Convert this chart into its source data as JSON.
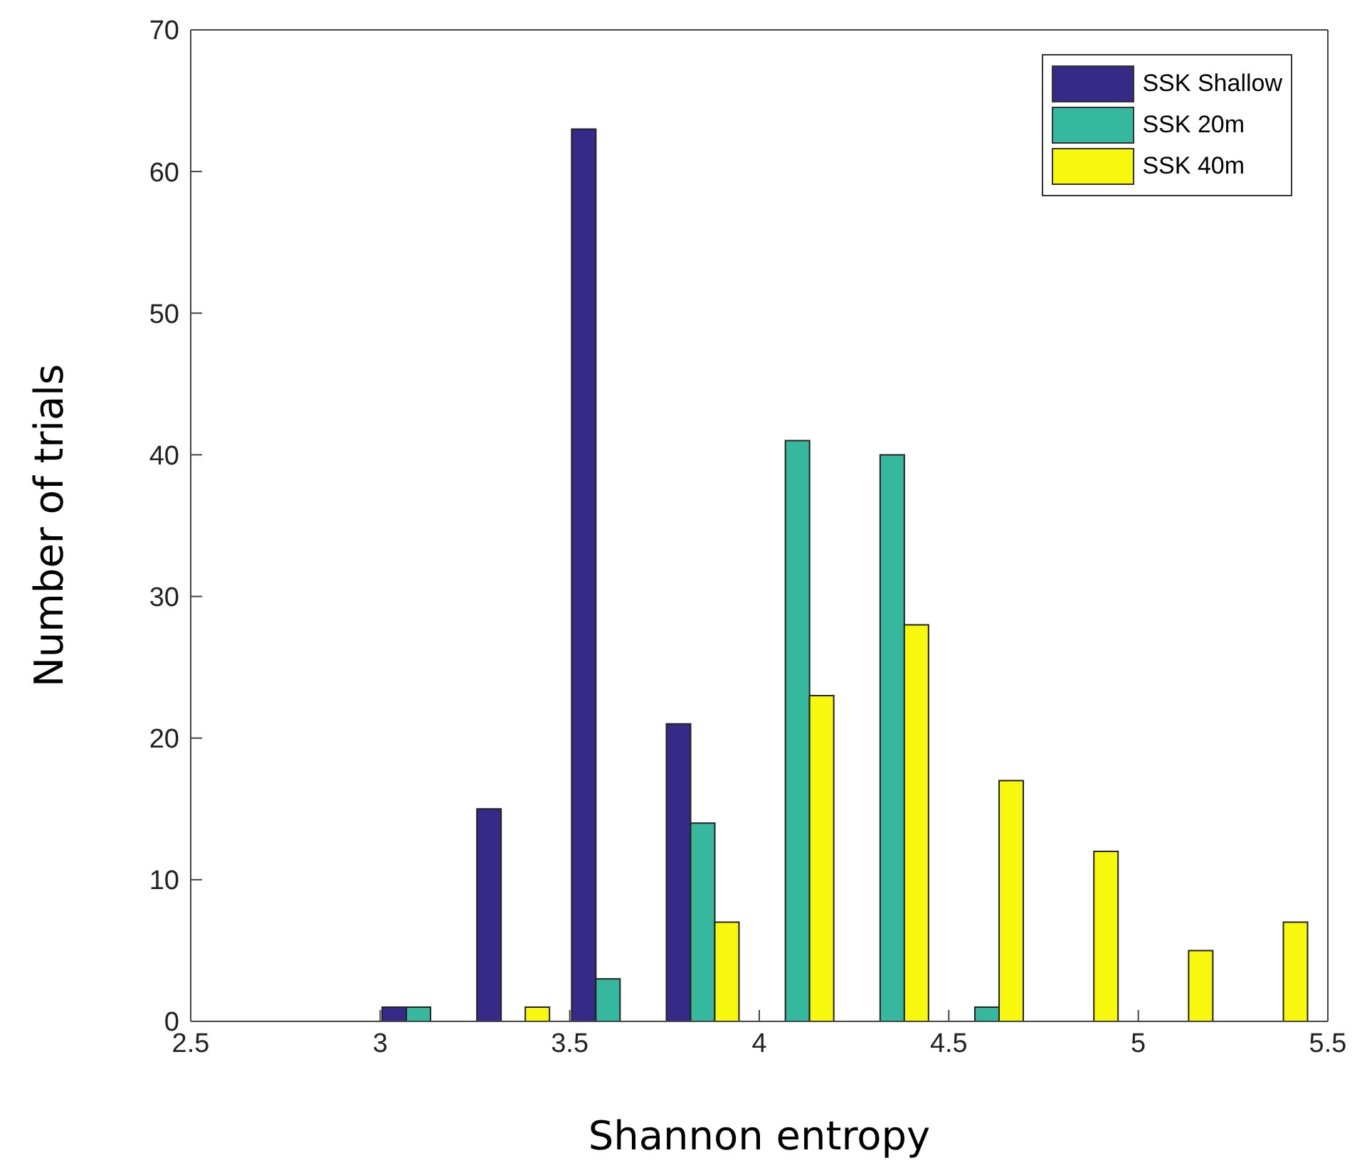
{
  "chart_data": {
    "type": "bar",
    "xlabel": "Shannon entropy",
    "ylabel": "Number of trials",
    "x": [
      3.1,
      3.35,
      3.6,
      3.85,
      4.1,
      4.35,
      4.6,
      4.85,
      5.1,
      5.35
    ],
    "series": [
      {
        "name": "SSK Shallow",
        "color": "#352a87",
        "values": [
          1,
          15,
          63,
          21,
          0,
          0,
          0,
          0,
          0,
          0
        ]
      },
      {
        "name": "SSK 20m",
        "color": "#36b89f",
        "values": [
          1,
          0,
          3,
          14,
          41,
          40,
          1,
          0,
          0,
          0
        ]
      },
      {
        "name": "SSK 40m",
        "color": "#f8f80f",
        "values": [
          0,
          1,
          0,
          7,
          23,
          28,
          17,
          12,
          5,
          7
        ]
      }
    ],
    "xlim": [
      2.5,
      5.5
    ],
    "xticks": [
      2.5,
      3,
      3.5,
      4,
      4.5,
      5,
      5.5
    ],
    "ylim": [
      0,
      70
    ],
    "yticks": [
      0,
      10,
      20,
      30,
      40,
      50,
      60,
      70
    ],
    "grid": false,
    "legend": "top right"
  }
}
